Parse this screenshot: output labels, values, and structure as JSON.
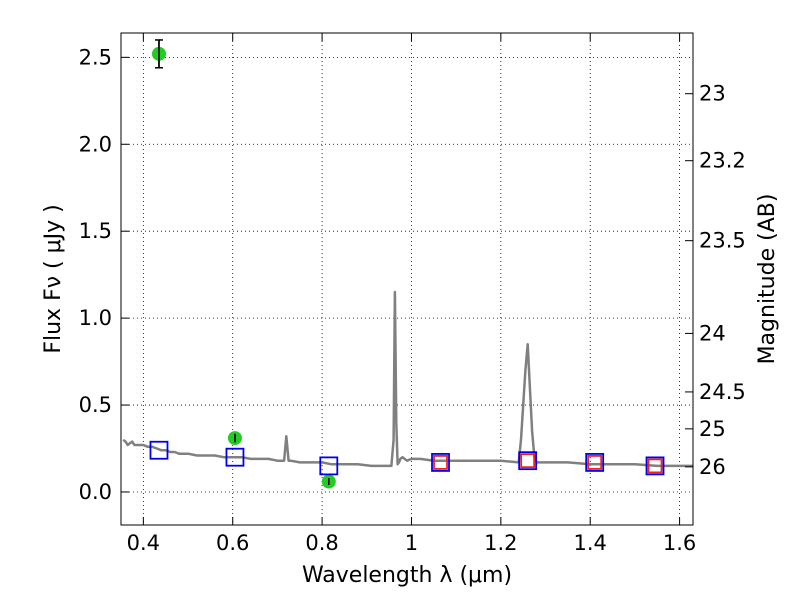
{
  "chart_data": {
    "type": "scatter",
    "xlabel": "Wavelength  λ (μm)",
    "ylabel": "Flux  Fν  ( μJy )",
    "y2label": "Magnitude (AB)",
    "xlim": [
      0.35,
      1.63
    ],
    "ylim": [
      -0.19,
      2.64
    ],
    "grid": true,
    "x_ticks": [
      0.4,
      0.6,
      0.8,
      1.0,
      1.2,
      1.4,
      1.6
    ],
    "x_tick_labels": [
      "0.4",
      "0.6",
      "0.8",
      "1",
      "1.2",
      "1.4",
      "1.6"
    ],
    "y_ticks": [
      0.0,
      0.5,
      1.0,
      1.5,
      2.0,
      2.5
    ],
    "y_tick_labels": [
      "0.0",
      "0.5",
      "1.0",
      "1.5",
      "2.0",
      "2.5"
    ],
    "y2_ticks": [
      23,
      23.2,
      23.5,
      24,
      24.5,
      25,
      26
    ],
    "y2_tick_labels": [
      "23",
      "23.2",
      "23.5",
      "24",
      "24.5",
      "25",
      "26"
    ],
    "series": [
      {
        "marker": "line",
        "color": "#808080",
        "x": [
          0.355,
          0.36,
          0.365,
          0.37,
          0.375,
          0.38,
          0.39,
          0.4,
          0.41,
          0.42,
          0.43,
          0.44,
          0.45,
          0.46,
          0.47,
          0.48,
          0.5,
          0.52,
          0.54,
          0.56,
          0.58,
          0.6,
          0.62,
          0.64,
          0.66,
          0.68,
          0.7,
          0.715,
          0.72,
          0.725,
          0.73,
          0.75,
          0.78,
          0.8,
          0.82,
          0.85,
          0.88,
          0.91,
          0.94,
          0.955,
          0.96,
          0.963,
          0.966,
          0.969,
          0.972,
          0.975,
          0.98,
          0.99,
          1.0,
          1.02,
          1.05,
          1.08,
          1.1,
          1.15,
          1.2,
          1.24,
          1.245,
          1.25,
          1.255,
          1.26,
          1.265,
          1.27,
          1.275,
          1.28,
          1.3,
          1.35,
          1.4,
          1.45,
          1.5,
          1.55,
          1.6,
          1.63
        ],
        "y": [
          0.3,
          0.29,
          0.27,
          0.28,
          0.29,
          0.27,
          0.27,
          0.27,
          0.26,
          0.26,
          0.25,
          0.24,
          0.24,
          0.23,
          0.23,
          0.22,
          0.22,
          0.21,
          0.21,
          0.21,
          0.2,
          0.2,
          0.2,
          0.19,
          0.19,
          0.19,
          0.18,
          0.18,
          0.32,
          0.18,
          0.18,
          0.17,
          0.17,
          0.17,
          0.16,
          0.16,
          0.16,
          0.15,
          0.15,
          0.15,
          0.3,
          1.15,
          0.4,
          0.16,
          0.17,
          0.19,
          0.2,
          0.18,
          0.19,
          0.19,
          0.18,
          0.18,
          0.18,
          0.18,
          0.18,
          0.17,
          0.3,
          0.5,
          0.7,
          0.85,
          0.6,
          0.35,
          0.2,
          0.17,
          0.17,
          0.17,
          0.16,
          0.16,
          0.16,
          0.15,
          0.15,
          0.15
        ]
      },
      {
        "marker": "circle",
        "color": "#22cc22",
        "x": [
          0.435,
          0.605,
          0.815
        ],
        "y": [
          2.52,
          0.31,
          0.06
        ],
        "yerr": [
          0.08,
          0.025,
          0.02
        ]
      },
      {
        "marker": "open-square",
        "color": "#0000ee",
        "x": [
          0.435,
          0.605,
          0.815,
          1.065,
          1.26,
          1.41,
          1.545
        ],
        "y": [
          0.24,
          0.2,
          0.15,
          0.17,
          0.18,
          0.17,
          0.15
        ]
      },
      {
        "marker": "open-square",
        "color": "#ee2222",
        "x": [
          1.065,
          1.26,
          1.41,
          1.545
        ],
        "y": [
          0.17,
          0.18,
          0.17,
          0.15
        ]
      }
    ]
  }
}
